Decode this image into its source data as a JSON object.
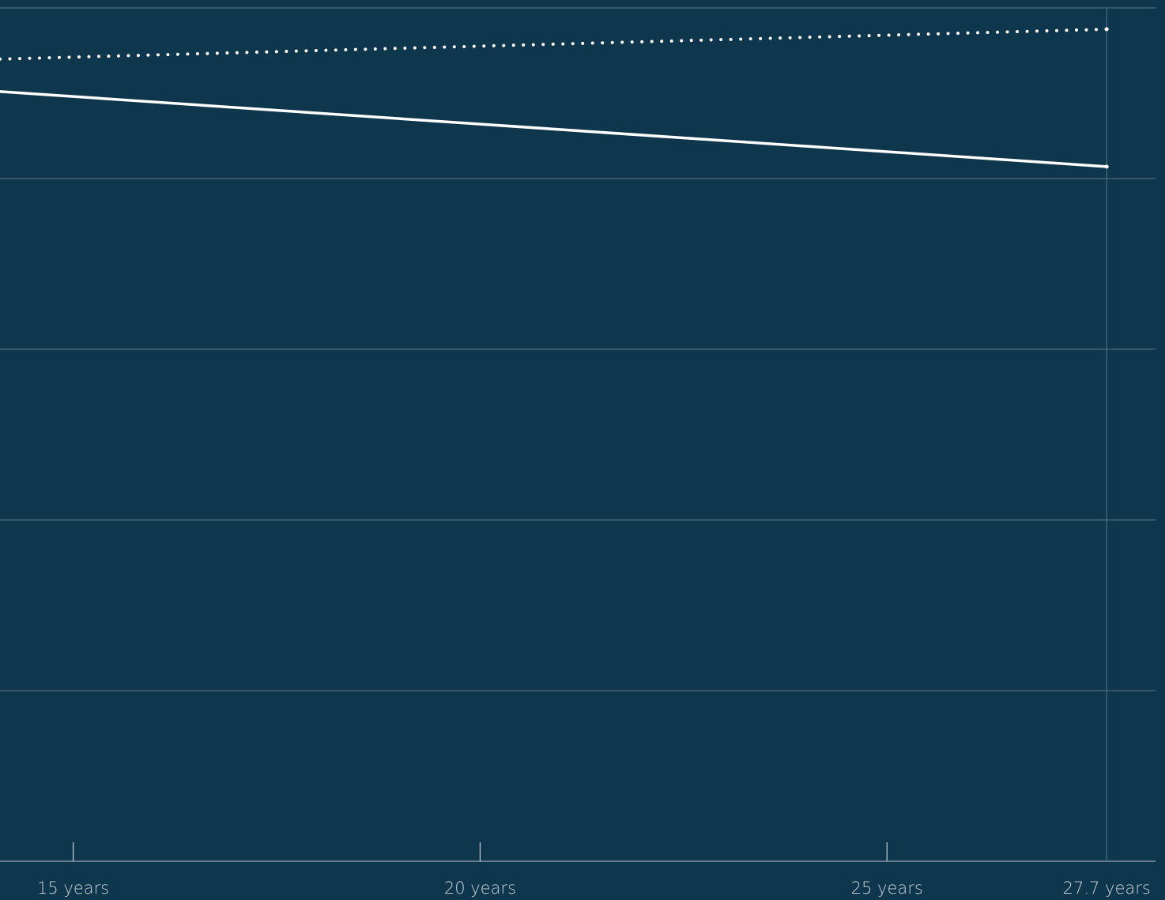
{
  "chart_data": {
    "type": "line",
    "x": [
      14.1,
      27.7
    ],
    "series": [
      {
        "name": null,
        "color": "#ffffff",
        "style": "dotted",
        "values": [
          4.7,
          4.875
        ]
      },
      {
        "name": null,
        "color": "#ffffff",
        "style": "solid",
        "values": [
          4.51,
          4.07
        ]
      }
    ],
    "xlim": [
      14.1,
      28.3
    ],
    "xticks": [
      {
        "value": 15,
        "label": "15 years"
      },
      {
        "value": 20,
        "label": "20 years"
      },
      {
        "value": 25,
        "label": "25 years"
      },
      {
        "value": 27.7,
        "label": "27.7 years"
      }
    ],
    "ylim": [
      0,
      5
    ],
    "yticks": [
      0,
      1,
      2,
      3,
      4,
      5
    ],
    "grid": true,
    "background": "#0e364d"
  }
}
